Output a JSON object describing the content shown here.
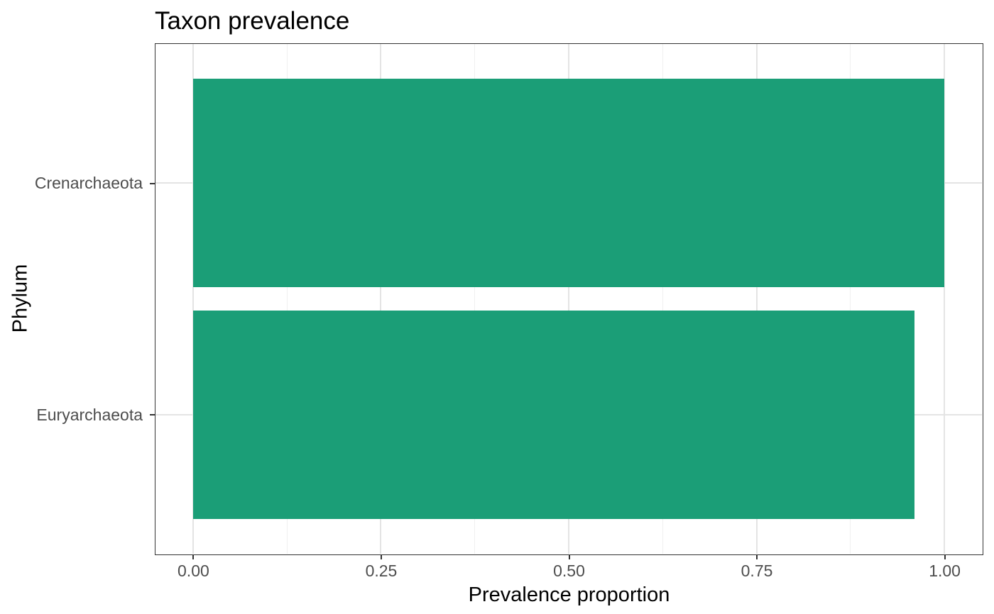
{
  "chart_data": {
    "type": "bar",
    "orientation": "horizontal",
    "title": "Taxon prevalence",
    "xlabel": "Prevalence proportion",
    "ylabel": "Phylum",
    "categories": [
      "Crenarchaeota",
      "Euryarchaeota"
    ],
    "values": [
      1.0,
      0.96
    ],
    "xlim": [
      0,
      1
    ],
    "x_ticks": [
      0,
      0.25,
      0.5,
      0.75,
      1.0
    ],
    "x_tick_labels": [
      "0.00",
      "0.25",
      "0.50",
      "0.75",
      "1.00"
    ],
    "x_minor_ticks": [
      0.125,
      0.375,
      0.625,
      0.875
    ],
    "bar_width_fraction": 0.9,
    "grid": true,
    "legend": false,
    "colors": {
      "bar": "#1b9e77",
      "grid_major": "#e4e4e4",
      "grid_minor": "#f0f0f0",
      "panel_border": "#333333",
      "tick_mark": "#333333",
      "tick_label": "#4d4d4d",
      "title": "#000000",
      "axis_title": "#000000",
      "background": "#ffffff"
    }
  }
}
